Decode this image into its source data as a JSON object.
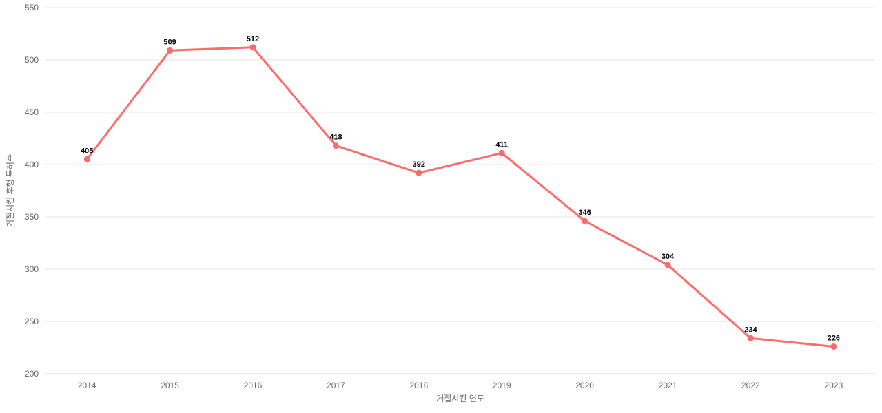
{
  "chart_data": {
    "type": "line",
    "title": "",
    "categories": [
      "2014",
      "2015",
      "2016",
      "2017",
      "2018",
      "2019",
      "2020",
      "2021",
      "2022",
      "2023"
    ],
    "values": [
      405,
      509,
      512,
      418,
      392,
      411,
      346,
      304,
      234,
      226
    ],
    "xlabel": "거절시킨 연도",
    "ylabel": "거절시킨 후행 특허수",
    "ylim": [
      200,
      550
    ],
    "yticks": [
      200,
      250,
      300,
      350,
      400,
      450,
      500,
      550
    ],
    "grid": "horizontal-only",
    "legend_position": "none",
    "data_labels": true,
    "colors": {
      "line": "#ff6b6b",
      "marker": "#ff6b6b",
      "gridline": "#e6e6e6",
      "axis_line": "#ccd6eb",
      "tick_label": "#666666",
      "axis_title": "#666666",
      "data_label": "#000000",
      "background": "#ffffff"
    }
  }
}
